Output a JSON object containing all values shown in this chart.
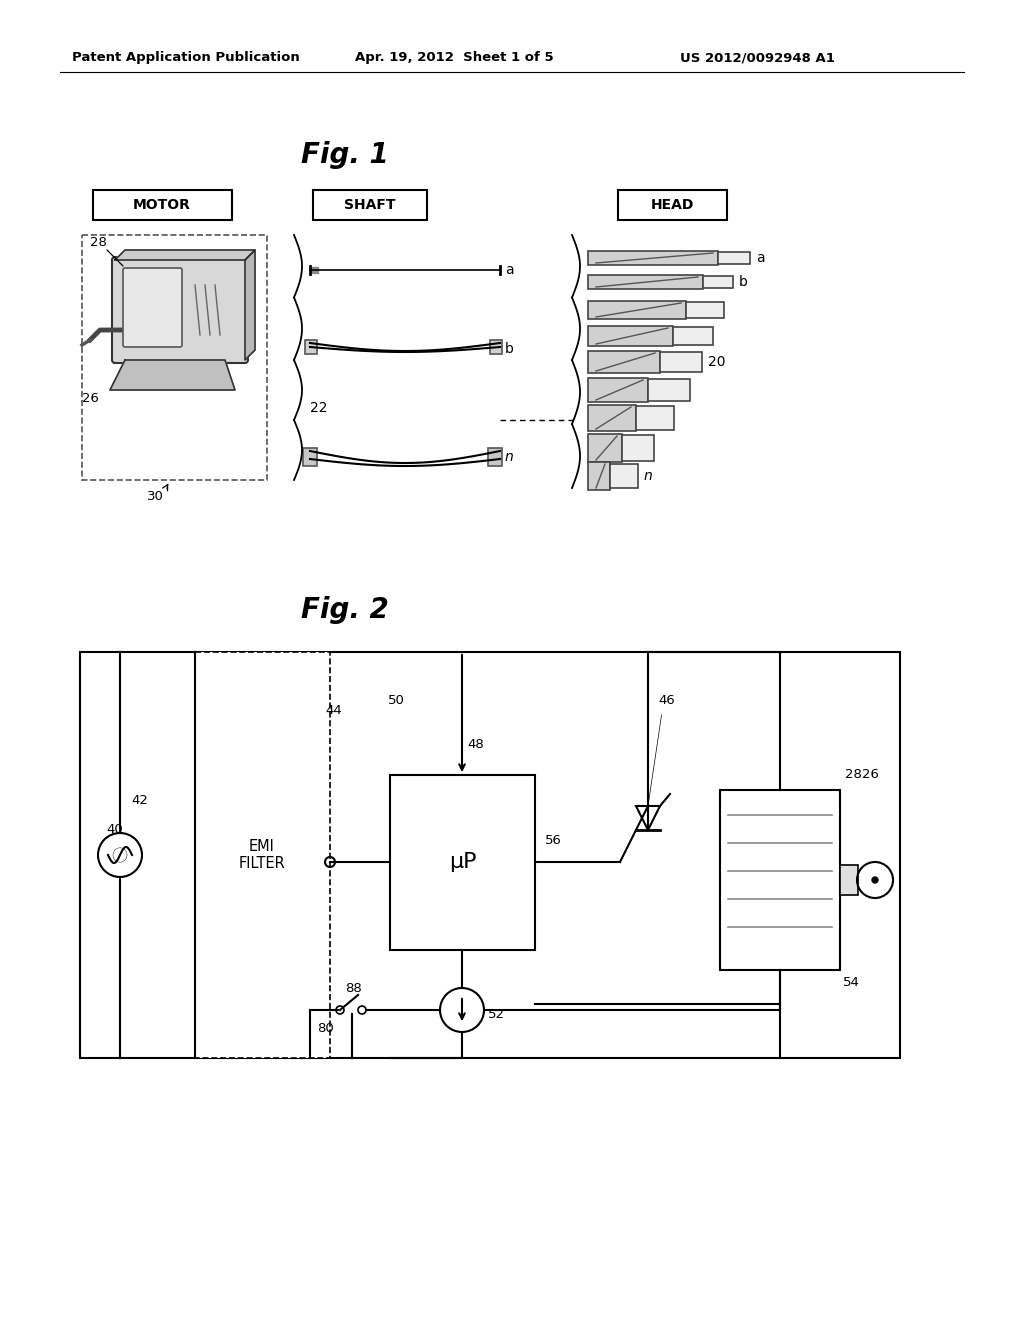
{
  "bg_color": "#ffffff",
  "header_text": "Patent Application Publication",
  "header_date": "Apr. 19, 2012  Sheet 1 of 5",
  "header_patent": "US 2012/0092948 A1",
  "fig1_title": "Fig. 1",
  "fig2_title": "Fig. 2",
  "label_motor": "MOTOR",
  "label_shaft": "SHAFT",
  "label_head": "HEAD",
  "label_22": "22",
  "label_26": "26",
  "label_28": "28",
  "label_30": "30",
  "label_20": "20",
  "label_40": "40",
  "label_42": "42",
  "label_44": "44",
  "label_46": "46",
  "label_48": "48",
  "label_50": "50",
  "label_52": "52",
  "label_54": "54",
  "label_56": "56",
  "label_80": "80",
  "label_88": "88",
  "label_emi": "EMI\nFILTER",
  "label_up": "μP"
}
